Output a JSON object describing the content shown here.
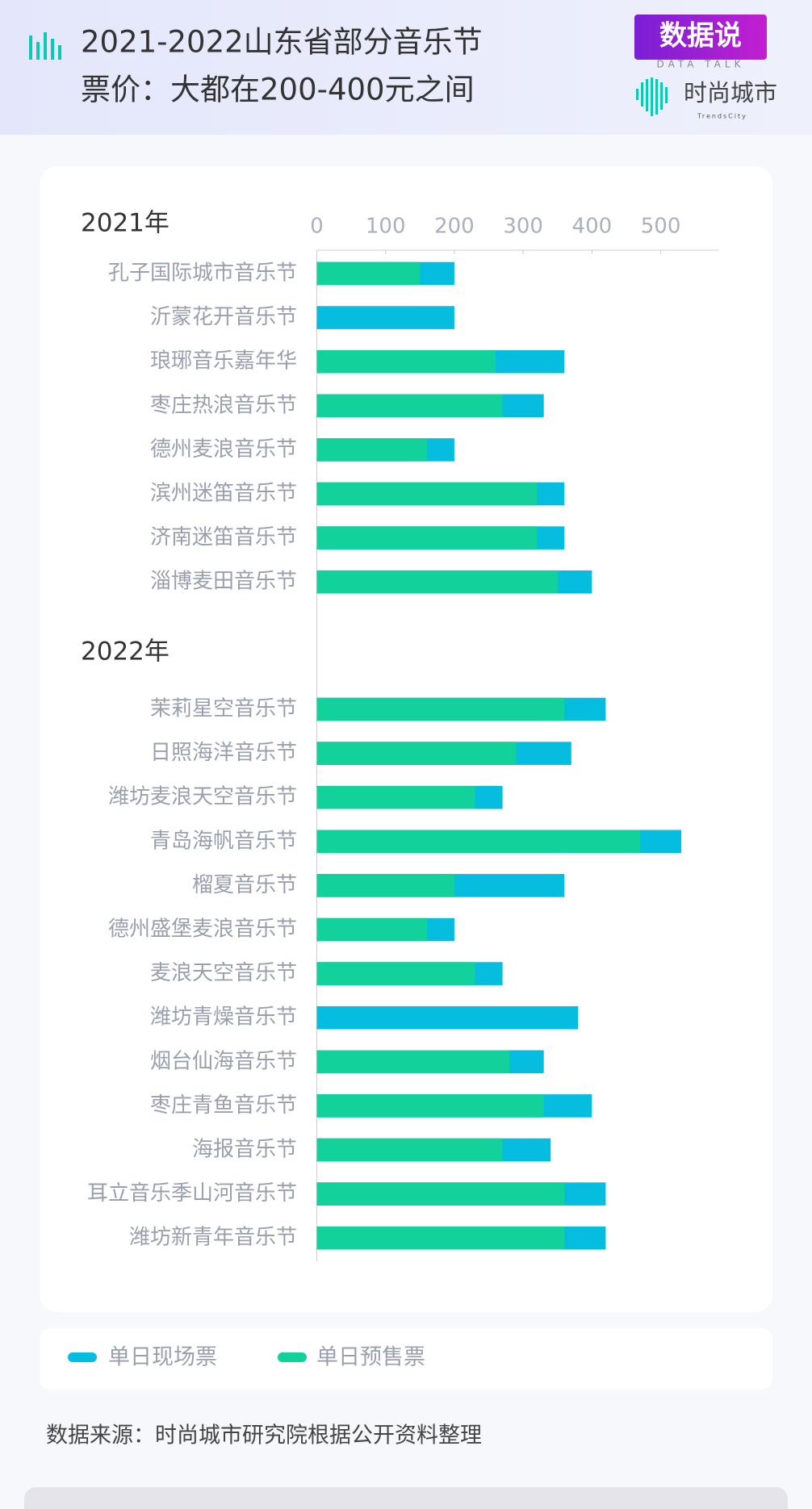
{
  "header": {
    "title_lines": [
      "2021-2022山东省部分音乐节",
      "票价：大都在200-400元之间"
    ],
    "brand": "数据说",
    "brand_sub": "DATA TALK",
    "logo": "时尚城市",
    "logo_sub": "TrendsCity"
  },
  "chart_data": {
    "type": "bar",
    "orientation": "horizontal",
    "overlap": true,
    "xlim": [
      0,
      585
    ],
    "xticks": [
      0,
      100,
      200,
      300,
      400,
      500
    ],
    "groups": [
      {
        "label": "2021年",
        "categories": [
          "孔子国际城市音乐节",
          "沂蒙花开音乐节",
          "琅琊音乐嘉年华",
          "枣庄热浪音乐节",
          "德州麦浪音乐节",
          "滨州迷笛音乐节",
          "济南迷笛音乐节",
          "淄博麦田音乐节"
        ]
      },
      {
        "label": "2022年",
        "categories": [
          "茉莉星空音乐节",
          "日照海洋音乐节",
          "潍坊麦浪天空音乐节",
          "青岛海帆音乐节",
          "榴夏音乐节",
          "德州盛堡麦浪音乐节",
          "麦浪天空音乐节",
          "潍坊青燥音乐节",
          "烟台仙海音乐节",
          "枣庄青鱼音乐节",
          "海报音乐节",
          "耳立音乐季山河音乐节",
          "潍坊新青年音乐节"
        ]
      }
    ],
    "series": [
      {
        "name": "单日现场票",
        "color": "#05bddf",
        "values": [
          [
            200,
            200,
            360,
            330,
            200,
            360,
            360,
            400
          ],
          [
            420,
            370,
            270,
            530,
            360,
            200,
            270,
            380,
            330,
            400,
            340,
            420,
            420
          ]
        ]
      },
      {
        "name": "单日预售票",
        "color": "#12d19b",
        "values": [
          [
            150,
            null,
            260,
            270,
            160,
            320,
            320,
            350
          ],
          [
            360,
            290,
            230,
            470,
            200,
            160,
            230,
            null,
            280,
            330,
            270,
            360,
            360
          ]
        ]
      }
    ],
    "source": "数据来源：时尚城市研究院根据公开资料整理"
  }
}
